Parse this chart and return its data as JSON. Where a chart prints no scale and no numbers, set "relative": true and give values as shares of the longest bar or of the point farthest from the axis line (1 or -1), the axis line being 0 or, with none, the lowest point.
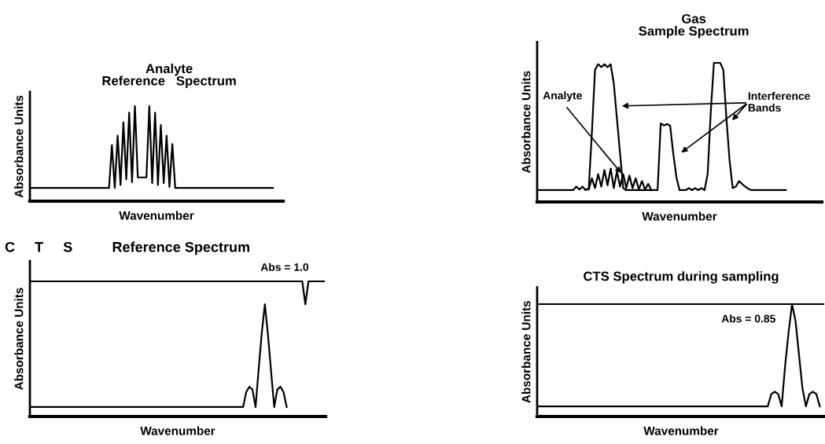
{
  "chart_data": [
    {
      "type": "line",
      "relative": true,
      "title": "Analyte\nReference   Spectrum",
      "xlabel": "Wavenumber",
      "ylabel": "Absorbance Units",
      "categories": [
        null,
        null,
        null,
        null,
        null,
        null,
        null,
        null,
        null,
        null,
        null,
        null,
        null,
        null,
        null,
        null,
        null,
        null,
        null,
        null,
        null,
        null,
        null,
        null,
        null,
        null,
        null,
        null,
        null,
        null,
        null,
        null,
        null,
        null,
        null,
        null,
        null,
        null,
        null,
        null,
        null,
        null,
        null,
        null,
        null,
        null,
        null,
        null,
        null,
        null,
        null,
        null,
        null,
        null,
        null,
        null,
        null,
        null,
        null,
        null,
        null,
        null,
        null,
        null,
        null,
        null,
        null,
        null,
        null,
        null,
        null,
        null,
        null,
        null,
        null,
        null,
        null,
        null,
        null,
        null,
        null,
        null,
        null,
        null,
        null
      ],
      "series": [
        {
          "color": "#000000",
          "values": [
            0.14,
            0.14,
            0.14,
            0.14,
            0.14,
            0.14,
            0.14,
            0.14,
            0.14,
            0.14,
            0.14,
            0.14,
            0.14,
            0.14,
            0.14,
            0.14,
            0.14,
            0.14,
            0.14,
            0.14,
            0.14,
            0.14,
            0.14,
            0.14,
            0.14,
            0.14,
            0.14,
            0.14,
            0.59,
            0.14,
            0.69,
            0.17,
            0.83,
            0.23,
            0.93,
            0.2,
            1.0,
            0.25,
            0.25,
            0.25,
            0.25,
            1.0,
            0.19,
            0.93,
            0.17,
            0.8,
            0.19,
            0.69,
            0.15,
            0.6,
            0.14,
            0.14,
            0.14,
            0.14,
            0.14,
            0.14,
            0.14,
            0.14,
            0.14,
            0.14,
            0.14,
            0.14,
            0.14,
            0.14,
            0.14,
            0.14,
            0.14,
            0.14,
            0.14,
            0.14,
            0.14,
            0.14,
            0.14,
            0.14,
            0.14,
            0.14,
            0.14,
            0.14,
            0.14,
            0.14,
            0.14,
            0.14,
            0.14,
            0.14,
            0.14
          ]
        }
      ]
    },
    {
      "type": "line",
      "relative": true,
      "title": "Gas\nSample Spectrum",
      "xlabel": "Wavenumber",
      "ylabel": "Absorbance Units",
      "annotations": [
        "Analyte",
        "Interference\nBands"
      ],
      "categories": [
        null,
        null,
        null,
        null,
        null,
        null,
        null,
        null,
        null,
        null,
        null,
        null,
        null,
        null,
        null,
        null,
        null,
        null,
        null,
        null,
        null,
        null,
        null,
        null,
        null,
        null,
        null,
        null,
        null,
        null,
        null,
        null,
        null,
        null,
        null,
        null,
        null,
        null,
        null,
        null,
        null,
        null,
        null,
        null,
        null,
        null,
        null,
        null,
        null,
        null,
        null,
        null,
        null,
        null,
        null,
        null,
        null,
        null,
        null,
        null,
        null,
        null,
        null,
        null,
        null,
        null,
        null,
        null,
        null,
        null,
        null,
        null,
        null,
        null,
        null,
        null,
        null,
        null,
        null,
        null
      ],
      "series": [
        {
          "color": "#000000",
          "values": [
            0.085,
            0.085,
            0.085,
            0.085,
            0.085,
            0.085,
            0.085,
            0.085,
            0.085,
            0.085,
            0.085,
            0.085,
            0.11,
            0.09,
            0.11,
            0.085,
            0.1,
            0.5,
            0.95,
            0.99,
            0.97,
            0.99,
            0.97,
            0.99,
            0.85,
            0.6,
            0.35,
            0.1,
            0.085,
            0.085,
            0.085,
            0.085,
            0.085,
            0.085,
            0.085,
            0.085,
            0.085,
            0.085,
            0.085,
            0.565,
            0.55,
            0.56,
            0.55,
            0.35,
            0.18,
            0.085,
            0.085,
            0.085,
            0.1,
            0.085,
            0.1,
            0.085,
            0.1,
            0.085,
            0.2,
            0.65,
            1.0,
            1.0,
            1.0,
            0.95,
            0.6,
            0.3,
            0.1,
            0.11,
            0.15,
            0.13,
            0.11,
            0.095,
            0.085,
            0.085,
            0.085,
            0.085,
            0.085,
            0.085,
            0.085,
            0.085,
            0.085,
            0.085,
            0.085,
            0.085
          ]
        },
        {
          "color": "#000000",
          "values": [
            null,
            null,
            null,
            null,
            null,
            null,
            null,
            null,
            null,
            null,
            null,
            null,
            null,
            null,
            null,
            null,
            0.09,
            0.17,
            0.1,
            0.2,
            0.11,
            0.23,
            0.12,
            0.24,
            0.1,
            0.22,
            0.11,
            0.2,
            0.1,
            0.19,
            0.1,
            0.17,
            0.09,
            0.15,
            0.09,
            0.13,
            0.085,
            null,
            null,
            null,
            null,
            null,
            null,
            null,
            null,
            null,
            null,
            null,
            null,
            null,
            null,
            null,
            null,
            null,
            null,
            null,
            null,
            null,
            null,
            null,
            null,
            null,
            null,
            null,
            null,
            null,
            null,
            null,
            null,
            null,
            null,
            null,
            null,
            null,
            null,
            null,
            null,
            null,
            null,
            null
          ]
        }
      ]
    },
    {
      "type": "line",
      "relative": true,
      "title": "C     T     S          Reference Spectrum",
      "xlabel": "Wavenumber",
      "ylabel": "Absorbance Units",
      "annotations": [
        "Abs = 1.0"
      ],
      "categories": [
        null,
        null,
        null,
        null,
        null,
        null,
        null,
        null,
        null,
        null,
        null,
        null,
        null,
        null,
        null,
        null,
        null,
        null,
        null,
        null,
        null,
        null,
        null,
        null,
        null,
        null,
        null,
        null,
        null,
        null,
        null,
        null,
        null,
        null,
        null,
        null,
        null,
        null,
        null,
        null,
        null,
        null,
        null,
        null,
        null,
        null,
        null,
        null,
        null,
        null,
        null,
        null,
        null,
        null,
        null,
        null,
        null,
        null,
        null,
        null,
        null,
        null,
        null,
        null,
        null,
        null,
        null,
        null,
        null,
        null,
        null,
        null,
        null,
        null,
        null,
        null,
        null,
        null,
        null,
        null,
        null,
        null,
        null,
        null,
        null,
        null,
        null,
        null,
        null,
        null,
        null,
        null,
        null,
        null,
        null
      ],
      "series": [
        {
          "color": "#000000",
          "values": [
            0.07,
            0.07,
            0.07,
            0.07,
            0.07,
            0.07,
            0.07,
            0.07,
            0.07,
            0.07,
            0.07,
            0.07,
            0.07,
            0.07,
            0.07,
            0.07,
            0.07,
            0.07,
            0.07,
            0.07,
            0.07,
            0.07,
            0.07,
            0.07,
            0.07,
            0.07,
            0.07,
            0.07,
            0.07,
            0.07,
            0.07,
            0.07,
            0.07,
            0.07,
            0.07,
            0.07,
            0.07,
            0.07,
            0.07,
            0.07,
            0.07,
            0.07,
            0.07,
            0.07,
            0.07,
            0.07,
            0.07,
            0.07,
            0.07,
            0.07,
            0.07,
            0.07,
            0.07,
            0.07,
            0.07,
            0.07,
            0.07,
            0.07,
            0.07,
            0.07,
            0.07,
            0.07,
            0.07,
            0.07,
            0.07,
            0.07,
            0.07,
            0.07,
            0.07,
            0.18,
            0.22,
            0.2,
            0.07,
            0.35,
            0.62,
            0.83,
            0.6,
            0.33,
            0.07,
            0.2,
            0.22,
            0.18,
            0.07,
            null,
            null,
            null,
            null,
            null,
            null,
            null,
            null,
            null,
            null,
            null,
            null
          ]
        },
        {
          "color": "#000000",
          "values": [
            1,
            1,
            1,
            1,
            1,
            1,
            1,
            1,
            1,
            1,
            1,
            1,
            1,
            1,
            1,
            1,
            1,
            1,
            1,
            1,
            1,
            1,
            1,
            1,
            1,
            1,
            1,
            1,
            1,
            1,
            1,
            1,
            1,
            1,
            1,
            1,
            1,
            1,
            1,
            1,
            1,
            1,
            1,
            1,
            1,
            1,
            1,
            1,
            1,
            1,
            1,
            1,
            1,
            1,
            1,
            1,
            1,
            1,
            1,
            1,
            1,
            1,
            1,
            1,
            1,
            1,
            1,
            1,
            1,
            1,
            1,
            1,
            1,
            1,
            1,
            1,
            1,
            1,
            1,
            1,
            1,
            1,
            1,
            1,
            1,
            1,
            1,
            1,
            0.83,
            1,
            1,
            1,
            1,
            1,
            1
          ]
        }
      ]
    },
    {
      "type": "line",
      "relative": true,
      "title": "CTS Spectrum during sampling",
      "xlabel": "Wavenumber",
      "ylabel": "Absorbance Units",
      "annotations": [
        "Abs = 0.85"
      ],
      "categories": [
        null,
        null,
        null,
        null,
        null,
        null,
        null,
        null,
        null,
        null,
        null,
        null,
        null,
        null,
        null,
        null,
        null,
        null,
        null,
        null,
        null,
        null,
        null,
        null,
        null,
        null,
        null,
        null,
        null,
        null,
        null,
        null,
        null,
        null,
        null,
        null,
        null,
        null,
        null,
        null,
        null,
        null,
        null,
        null,
        null,
        null,
        null,
        null,
        null,
        null,
        null,
        null,
        null,
        null,
        null,
        null,
        null,
        null,
        null,
        null,
        null,
        null,
        null,
        null,
        null,
        null,
        null,
        null,
        null,
        null,
        null,
        null,
        null,
        null,
        null,
        null,
        null,
        null,
        null,
        null,
        null,
        null,
        null
      ],
      "series": [
        {
          "color": "#000000",
          "values": [
            0.09,
            0.09,
            0.09,
            0.09,
            0.09,
            0.09,
            0.09,
            0.09,
            0.09,
            0.09,
            0.09,
            0.09,
            0.09,
            0.09,
            0.09,
            0.09,
            0.09,
            0.09,
            0.09,
            0.09,
            0.09,
            0.09,
            0.09,
            0.09,
            0.09,
            0.09,
            0.09,
            0.09,
            0.09,
            0.09,
            0.09,
            0.09,
            0.09,
            0.09,
            0.09,
            0.09,
            0.09,
            0.09,
            0.09,
            0.09,
            0.09,
            0.09,
            0.09,
            0.09,
            0.09,
            0.09,
            0.09,
            0.09,
            0.09,
            0.09,
            0.09,
            0.09,
            0.09,
            0.09,
            0.09,
            0.09,
            0.09,
            0.09,
            0.09,
            0.09,
            0.09,
            0.09,
            0.09,
            0.09,
            0.09,
            0.09,
            0.09,
            0.2,
            0.22,
            0.2,
            0.09,
            0.45,
            0.75,
            1.0,
            0.85,
            0.55,
            0.25,
            0.09,
            0.2,
            0.22,
            0.2,
            0.09,
            null
          ]
        },
        {
          "color": "#000000",
          "values": [
            1,
            1,
            1,
            1,
            1,
            1,
            1,
            1,
            1,
            1,
            1,
            1,
            1,
            1,
            1,
            1,
            1,
            1,
            1,
            1,
            1,
            1,
            1,
            1,
            1,
            1,
            1,
            1,
            1,
            1,
            1,
            1,
            1,
            1,
            1,
            1,
            1,
            1,
            1,
            1,
            1,
            1,
            1,
            1,
            1,
            1,
            1,
            1,
            1,
            1,
            1,
            1,
            1,
            1,
            1,
            1,
            1,
            1,
            1,
            1,
            1,
            1,
            1,
            1,
            1,
            1,
            1,
            1,
            1,
            1,
            1,
            1,
            1,
            1,
            1,
            1,
            1,
            1,
            1,
            1,
            1,
            1,
            1
          ]
        }
      ]
    }
  ]
}
